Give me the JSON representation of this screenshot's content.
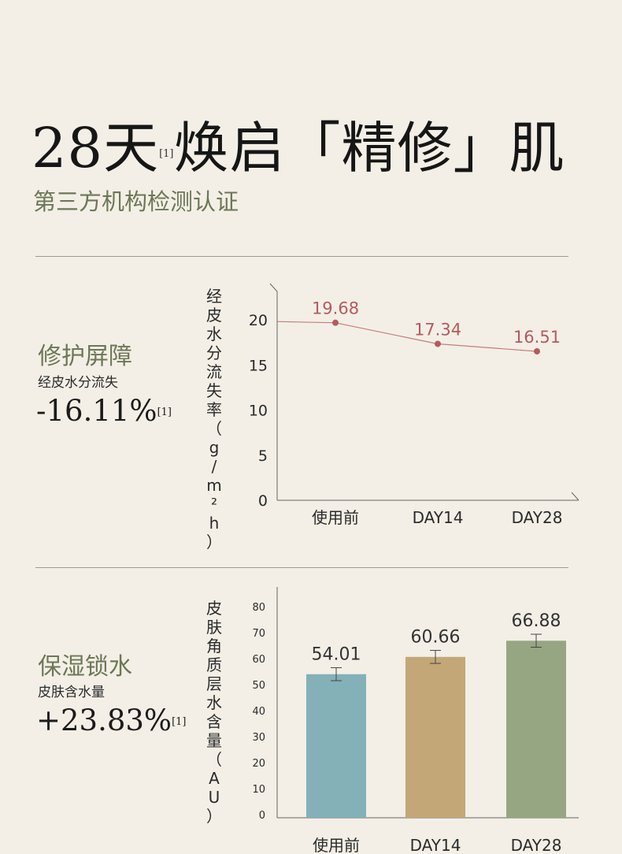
{
  "header": {
    "title_before": "28天",
    "title_sup": "[1]",
    "title_after": "焕启「精修」肌",
    "subtitle": "第三方机构检测认证"
  },
  "section1": {
    "title": "修护屏障",
    "metric": "经皮水分流失",
    "value": "-16.11%",
    "value_sup": "[1]",
    "axis_label": "经皮水分流失率（g/m²h）"
  },
  "section2": {
    "title": "保湿锁水",
    "metric": "皮肤含水量",
    "value": "+23.83%",
    "value_sup": "[1]",
    "axis_label": "皮肤角质层水含量（AU）"
  },
  "chart_data": [
    {
      "type": "line",
      "categories": [
        "使用前",
        "DAY14",
        "DAY28"
      ],
      "series": [
        {
          "values": [
            19.68,
            17.34,
            16.51
          ]
        }
      ],
      "data_labels": [
        "19.68",
        "17.34",
        "16.51"
      ],
      "yticks": [
        "0",
        "5",
        "10",
        "15",
        "20"
      ],
      "ylim": [
        0,
        20
      ],
      "ylabel": "经皮水分流失率（g/m²h）",
      "color": "#b55a5f",
      "grid": false
    },
    {
      "type": "bar",
      "categories": [
        "使用前",
        "DAY14",
        "DAY28"
      ],
      "values": [
        54.01,
        60.66,
        66.88
      ],
      "data_labels": [
        "54.01",
        "60.66",
        "66.88"
      ],
      "error": [
        2.5,
        2.5,
        2.5
      ],
      "yticks": [
        "0",
        "10",
        "20",
        "30",
        "40",
        "50",
        "60",
        "70",
        "80"
      ],
      "ylim": [
        0,
        80
      ],
      "ylabel": "皮肤角质层水含量（AU）",
      "colors": [
        "#84b0b8",
        "#c4a777",
        "#97a682"
      ],
      "grid": false
    }
  ]
}
